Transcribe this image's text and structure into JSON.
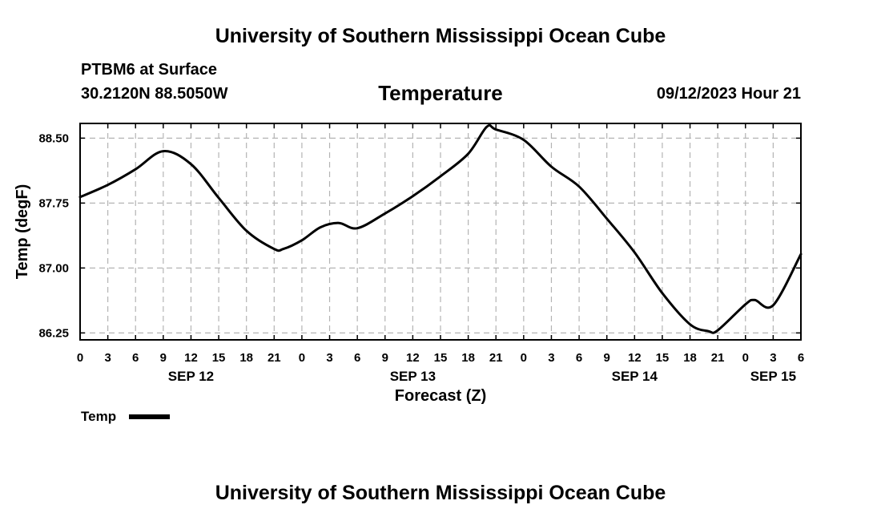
{
  "page": {
    "header_title": "University of Southern Mississippi Ocean Cube",
    "footer_title": "University of Southern Mississippi Ocean Cube",
    "station": "PTBM6 at Surface",
    "coordinates": "30.2120N  88.5050W",
    "panel_title": "Temperature",
    "issued": "09/12/2023 Hour 21",
    "line_color": "#000000",
    "grid_color": "#b4b4b4"
  },
  "chart_data": {
    "type": "line",
    "title": "Temperature",
    "xlabel": "Forecast (Z)",
    "ylabel": "Temp (degF)",
    "xlim": [
      0,
      78
    ],
    "ylim": [
      86.17,
      88.67
    ],
    "y_ticks": [
      86.25,
      87.0,
      87.75,
      88.5
    ],
    "y_tick_labels": [
      "86.25",
      "87.00",
      "87.75",
      "88.50"
    ],
    "x_ticks": [
      0,
      3,
      6,
      9,
      12,
      15,
      18,
      21,
      24,
      27,
      30,
      33,
      36,
      39,
      42,
      45,
      48,
      51,
      54,
      57,
      60,
      63,
      66,
      69,
      72,
      75,
      78
    ],
    "x_tick_labels": [
      "0",
      "3",
      "6",
      "9",
      "12",
      "15",
      "18",
      "21",
      "0",
      "3",
      "6",
      "9",
      "12",
      "15",
      "18",
      "21",
      "0",
      "3",
      "6",
      "9",
      "12",
      "15",
      "18",
      "21",
      "0",
      "3",
      "6"
    ],
    "date_labels": [
      {
        "text": "SEP 12",
        "x": 12
      },
      {
        "text": "SEP 13",
        "x": 36
      },
      {
        "text": "SEP 14",
        "x": 60
      },
      {
        "text": "SEP 15",
        "x": 75
      }
    ],
    "grid": true,
    "legend": {
      "position": "bottom-left",
      "label": "Temp"
    },
    "series": [
      {
        "name": "Temp",
        "x": [
          0,
          3,
          6,
          9,
          12,
          15,
          18,
          21,
          22,
          24,
          26,
          28,
          30,
          33,
          36,
          39,
          42,
          44,
          45,
          48,
          51,
          54,
          57,
          60,
          63,
          66,
          68,
          69,
          72,
          73,
          75,
          78
        ],
        "values": [
          87.82,
          87.96,
          88.14,
          88.35,
          88.2,
          87.81,
          87.43,
          87.22,
          87.22,
          87.32,
          87.47,
          87.52,
          87.46,
          87.63,
          87.83,
          88.06,
          88.32,
          88.63,
          88.6,
          88.48,
          88.17,
          87.94,
          87.57,
          87.18,
          86.71,
          86.35,
          86.27,
          86.28,
          86.58,
          86.63,
          86.57,
          87.16
        ]
      }
    ]
  }
}
